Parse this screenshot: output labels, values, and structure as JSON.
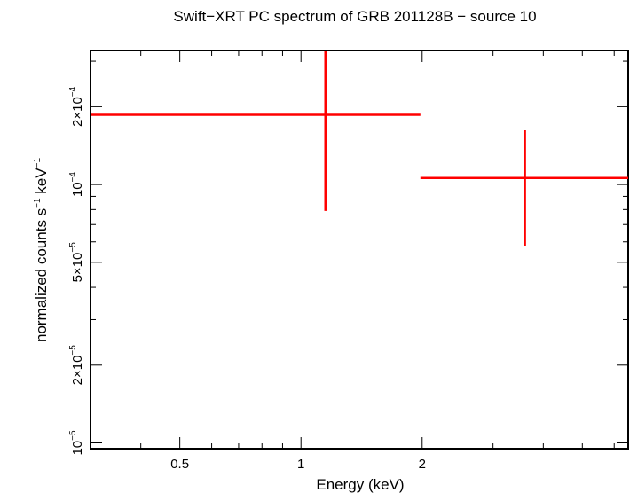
{
  "chart_data": {
    "type": "scatter",
    "title": "Swift−XRT PC spectrum of GRB 201128B − source 10",
    "xlabel": "Energy (keV)",
    "ylabel_parts": {
      "text1": "normalized counts s",
      "sup1": "−1",
      "text2": " keV",
      "sup2": "−1"
    },
    "xscale": "log",
    "yscale": "log",
    "xlim": [
      0.3,
      6.5
    ],
    "ylim": [
      9.5e-06,
      0.00033
    ],
    "x_ticks": [
      {
        "value": 0.5,
        "label": "0.5"
      },
      {
        "value": 1,
        "label": "1"
      },
      {
        "value": 2,
        "label": "2"
      }
    ],
    "y_ticks": [
      {
        "value": 1e-05,
        "mantissa": "",
        "exp": "−5"
      },
      {
        "value": 2e-05,
        "mantissa": "2×",
        "exp": "−5"
      },
      {
        "value": 5e-05,
        "mantissa": "5×",
        "exp": "−5"
      },
      {
        "value": 0.0001,
        "mantissa": "",
        "exp": "−4"
      },
      {
        "value": 0.0002,
        "mantissa": "2×",
        "exp": "−4"
      }
    ],
    "series": [
      {
        "color": "#ff0000",
        "points": [
          {
            "x": 1.15,
            "xlo": 0.3,
            "xhi": 1.98,
            "y": 0.000186,
            "ylo": 7.9e-05,
            "yhi": 0.00033
          },
          {
            "x": 3.6,
            "xlo": 1.98,
            "xhi": 6.5,
            "y": 0.000106,
            "ylo": 5.8e-05,
            "yhi": 0.000162
          }
        ]
      }
    ]
  }
}
